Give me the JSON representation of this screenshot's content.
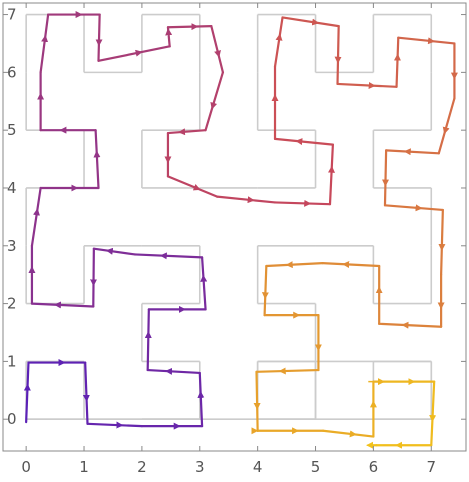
{
  "chart_data": {
    "type": "line",
    "title": "",
    "xlabel": "",
    "ylabel": "",
    "xlim": [
      -0.4,
      7.6
    ],
    "ylim": [
      -0.55,
      7.2
    ],
    "x_ticks": [
      "0",
      "1",
      "2",
      "3",
      "4",
      "5",
      "6",
      "7"
    ],
    "y_ticks": [
      "0",
      "1",
      "2",
      "3",
      "4",
      "5",
      "6",
      "7"
    ],
    "grid": false,
    "legend": "none",
    "colors": {
      "reference_curve": "#cccccc",
      "gradient_start": "#5b21b6",
      "gradient_mid": "#c8485a",
      "gradient_end": "#f2c21b",
      "axis": "#888888"
    },
    "series": [
      {
        "role": "reference hilbert curve",
        "x": [
          0,
          0,
          1,
          1,
          2,
          3,
          3,
          2,
          2,
          3,
          3,
          2,
          1,
          1,
          0,
          0,
          0,
          1,
          1,
          0,
          0,
          0,
          1,
          1,
          2,
          2,
          3,
          3,
          3,
          2,
          2,
          3,
          4,
          5,
          5,
          4,
          4,
          4,
          5,
          5,
          6,
          6,
          7,
          7,
          7,
          6,
          6,
          7,
          7,
          7,
          6,
          6,
          5,
          4,
          4,
          5,
          5,
          4,
          4,
          4,
          5,
          5,
          6,
          7,
          7,
          6,
          6,
          7,
          7,
          7,
          6,
          6,
          5,
          5,
          4,
          4,
          4,
          5,
          5,
          4,
          3,
          2,
          2,
          3,
          3,
          3,
          2,
          2,
          1,
          1,
          0,
          0,
          0,
          0,
          1,
          1
        ],
        "y": [
          0,
          1,
          1,
          0,
          0,
          0,
          1,
          1,
          2,
          2,
          3,
          3,
          3,
          2,
          2,
          3,
          4,
          4,
          5,
          5,
          6,
          7,
          7,
          6,
          6,
          7,
          7,
          6,
          5,
          5,
          4,
          4,
          4,
          4,
          5,
          5,
          6,
          7,
          7,
          6,
          6,
          7,
          7,
          6,
          5,
          5,
          4,
          4,
          3,
          2,
          2,
          3,
          3,
          3,
          2,
          2,
          1,
          1,
          0,
          0,
          0,
          1,
          1,
          1,
          0,
          0,
          0,
          0,
          1,
          1,
          1,
          0,
          0,
          1,
          1,
          0,
          0,
          0,
          0,
          0,
          0,
          0,
          0,
          0,
          0,
          0,
          0,
          0,
          0,
          0,
          0,
          0,
          0,
          0,
          0,
          0
        ]
      },
      {
        "role": "perturbed curve",
        "x": [
          0.0,
          0.04,
          1.02,
          1.06,
          2.0,
          3.04,
          3.0,
          2.1,
          2.12,
          3.1,
          3.04,
          1.88,
          1.17,
          1.16,
          0.1,
          0.1,
          0.25,
          1.25,
          1.2,
          0.25,
          0.25,
          0.38,
          1.27,
          1.25,
          2.48,
          2.45,
          3.2,
          3.4,
          3.1,
          2.45,
          2.45,
          3.3,
          4.3,
          5.25,
          5.3,
          4.3,
          4.3,
          4.43,
          5.4,
          5.38,
          6.4,
          6.43,
          7.4,
          7.4,
          7.13,
          6.22,
          6.2,
          7.2,
          7.17,
          7.17,
          6.1,
          6.1,
          5.12,
          4.15,
          4.12,
          5.05,
          5.05,
          3.98,
          4.0,
          4.0,
          5.13,
          6.0,
          6.0,
          6.1,
          7.05,
          7.0,
          6.05,
          6.0
        ],
        "y": [
          -0.05,
          0.98,
          0.98,
          -0.08,
          -0.12,
          -0.12,
          0.8,
          0.85,
          1.9,
          1.9,
          2.8,
          2.85,
          2.95,
          1.95,
          2.0,
          3.0,
          4.0,
          4.0,
          5.0,
          5.0,
          6.0,
          7.0,
          7.0,
          6.2,
          6.45,
          6.78,
          6.8,
          6.0,
          5.0,
          4.95,
          4.2,
          3.85,
          3.75,
          3.72,
          4.75,
          4.85,
          6.1,
          6.95,
          6.8,
          5.8,
          5.75,
          6.6,
          6.5,
          5.55,
          4.6,
          4.65,
          3.7,
          3.62,
          2.5,
          1.6,
          1.65,
          2.65,
          2.7,
          2.65,
          1.8,
          1.8,
          0.85,
          0.82,
          -0.2,
          -0.2,
          -0.2,
          -0.3,
          0.65,
          0.65,
          0.65,
          -0.45,
          -0.45,
          -0.45
        ]
      }
    ],
    "tangent_arrows": "arrows along the perturbed curve indicating direction of traversal"
  }
}
